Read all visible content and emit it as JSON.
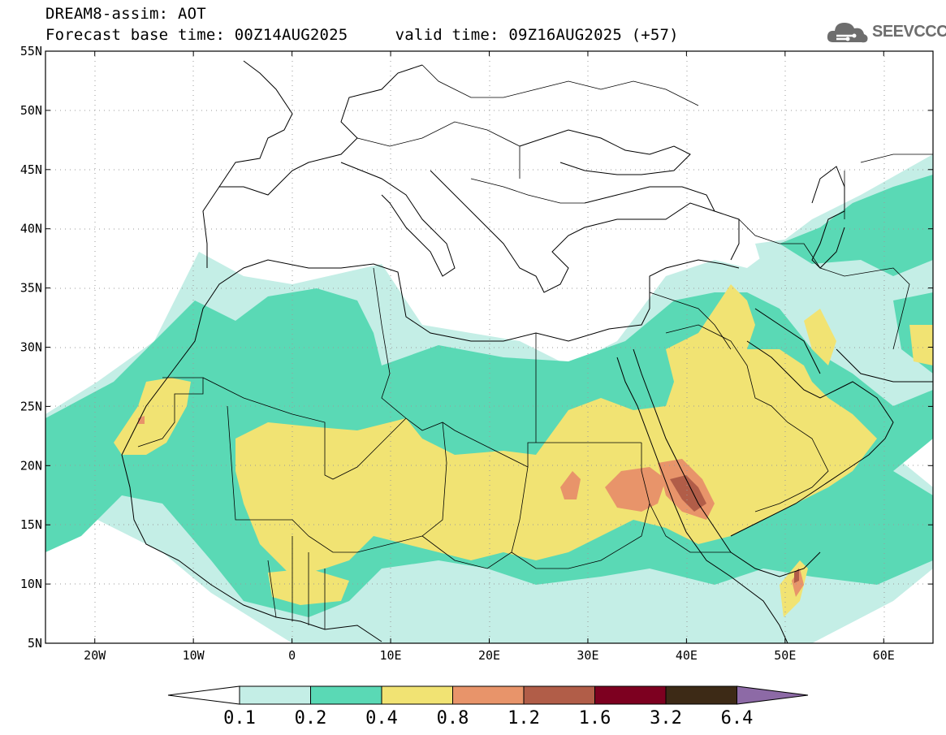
{
  "title": {
    "model": "DREAM8-assim: AOT",
    "base_time_label": "Forecast base time: 00Z14AUG2025",
    "valid_time_label": "valid time: 09Z16AUG2025 (+57)"
  },
  "logo": {
    "text": "SEEVCCC",
    "icon": "cloud-icon",
    "color": "#6d6d6d"
  },
  "map": {
    "projection": "cylindrical",
    "lat_range": [
      5,
      55
    ],
    "lon_range": [
      -25,
      65
    ],
    "lat_ticks": [
      {
        "value": 55,
        "label": "55N"
      },
      {
        "value": 50,
        "label": "50N"
      },
      {
        "value": 45,
        "label": "45N"
      },
      {
        "value": 40,
        "label": "40N"
      },
      {
        "value": 35,
        "label": "35N"
      },
      {
        "value": 30,
        "label": "30N"
      },
      {
        "value": 25,
        "label": "25N"
      },
      {
        "value": 20,
        "label": "20N"
      },
      {
        "value": 15,
        "label": "15N"
      },
      {
        "value": 10,
        "label": "10N"
      },
      {
        "value": 5,
        "label": "5N"
      }
    ],
    "lon_ticks": [
      {
        "value": -20,
        "label": "20W"
      },
      {
        "value": -10,
        "label": "10W"
      },
      {
        "value": 0,
        "label": "0"
      },
      {
        "value": 10,
        "label": "10E"
      },
      {
        "value": 20,
        "label": "20E"
      },
      {
        "value": 30,
        "label": "30E"
      },
      {
        "value": 40,
        "label": "40E"
      },
      {
        "value": 50,
        "label": "50E"
      },
      {
        "value": 60,
        "label": "60E"
      }
    ]
  },
  "colorbar": {
    "levels": [
      "0.1",
      "0.2",
      "0.4",
      "0.8",
      "1.2",
      "1.6",
      "3.2",
      "6.4"
    ],
    "colors": [
      "#c4eee6",
      "#5ad9b5",
      "#f1e373",
      "#e8946a",
      "#b15d48",
      "#7d0020",
      "#3d2a16",
      "#8d6aa6"
    ],
    "under_color": "#ffffff"
  }
}
